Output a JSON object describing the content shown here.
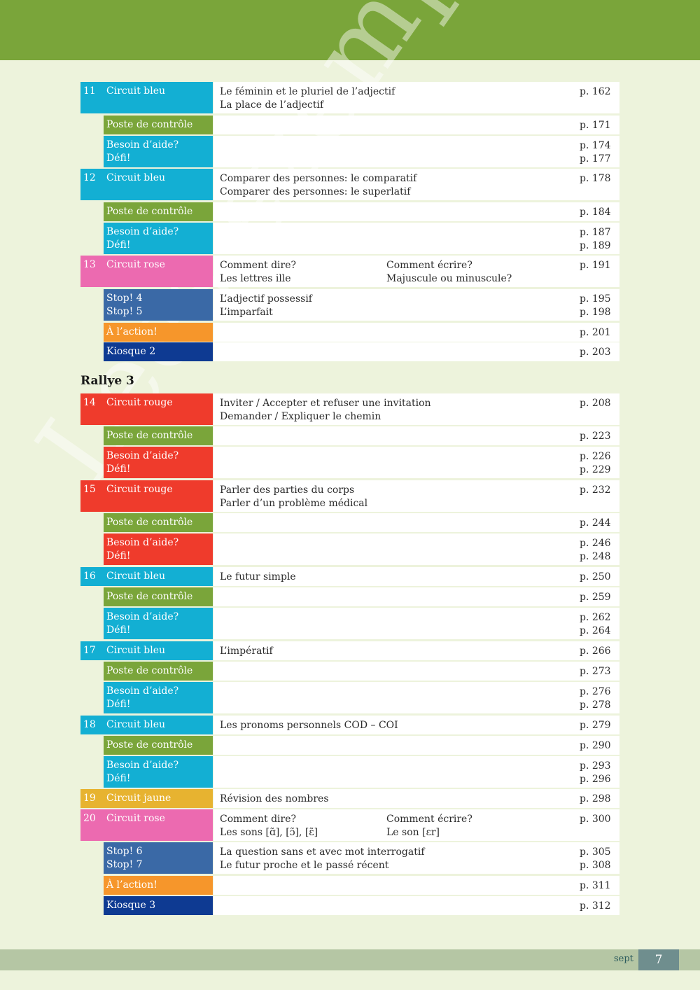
{
  "watermark": "Lees exemplaar",
  "rallye_title": "Rallye 3",
  "footer": {
    "word": "sept",
    "page": "7"
  },
  "colors": {
    "bleu": "#13afd3",
    "vert": "#7aa53a",
    "rose": "#ec6ab0",
    "rouge": "#ef3b2c",
    "stop": "#3a69a6",
    "action": "#f6962b",
    "kiosque": "#0e3a92",
    "jaune": "#e7b330",
    "num_bleu": "#13afd3",
    "num_rose": "#ec6ab0",
    "num_rouge": "#ef3b2c",
    "num_jaune": "#e7b330"
  },
  "rows": [
    {
      "num": "11",
      "label": "Circuit bleu",
      "color": "bleu",
      "c1": "Le féminin et le pluriel de l’adjectif\nLa place de l’adjectif",
      "c2": "",
      "page": "p. 162"
    },
    {
      "num": "",
      "label": "Poste de contrôle",
      "color": "vert",
      "c1": "",
      "c2": "",
      "page": "p. 171"
    },
    {
      "num": "",
      "label": "Besoin d’aide?\nDéfi!",
      "color": "bleu",
      "c1": "",
      "c2": "",
      "page": "p. 174\np. 177"
    },
    {
      "num": "12",
      "label": "Circuit bleu",
      "color": "bleu",
      "c1": "Comparer des personnes: le comparatif\nComparer des personnes: le superlatif",
      "c2": "",
      "page": "p. 178"
    },
    {
      "num": "",
      "label": "Poste de contrôle",
      "color": "vert",
      "c1": "",
      "c2": "",
      "page": "p. 184"
    },
    {
      "num": "",
      "label": "Besoin d’aide?\nDéfi!",
      "color": "bleu",
      "c1": "",
      "c2": "",
      "page": "p. 187\np. 189"
    },
    {
      "num": "13",
      "label": "Circuit rose",
      "color": "rose",
      "c1": "Comment dire?\nLes lettres ille",
      "c2": "Comment écrire?\nMajuscule ou minuscule?",
      "page": "p. 191"
    },
    {
      "num": "",
      "label": "Stop! 4\nStop! 5",
      "color": "stop",
      "c1": "L’adjectif possessif\nL’imparfait",
      "c2": "",
      "page": "p. 195\np. 198"
    },
    {
      "num": "",
      "label": "À l’action!",
      "color": "action",
      "c1": "",
      "c2": "",
      "page": "p. 201"
    },
    {
      "num": "",
      "label": "Kiosque 2",
      "color": "kiosque",
      "c1": "",
      "c2": "",
      "page": "p. 203"
    },
    {
      "num": "14",
      "label": "Circuit rouge",
      "color": "rouge",
      "c1": "Inviter / Accepter et refuser une invitation\nDemander / Expliquer le chemin",
      "c2": "",
      "page": "p. 208"
    },
    {
      "num": "",
      "label": "Poste de contrôle",
      "color": "vert",
      "c1": "",
      "c2": "",
      "page": "p. 223"
    },
    {
      "num": "",
      "label": "Besoin d’aide?\nDéfi!",
      "color": "rouge",
      "c1": "",
      "c2": "",
      "page": "p. 226\np. 229"
    },
    {
      "num": "15",
      "label": "Circuit rouge",
      "color": "rouge",
      "c1": "Parler des parties du corps\nParler d’un problème médical",
      "c2": "",
      "page": "p. 232"
    },
    {
      "num": "",
      "label": "Poste de contrôle",
      "color": "vert",
      "c1": "",
      "c2": "",
      "page": "p. 244"
    },
    {
      "num": "",
      "label": "Besoin d’aide?\nDéfi!",
      "color": "rouge",
      "c1": "",
      "c2": "",
      "page": "p. 246\np. 248"
    },
    {
      "num": "16",
      "label": "Circuit bleu",
      "color": "bleu",
      "c1": "Le futur simple",
      "c2": "",
      "page": "p. 250"
    },
    {
      "num": "",
      "label": "Poste de contrôle",
      "color": "vert",
      "c1": "",
      "c2": "",
      "page": "p. 259"
    },
    {
      "num": "",
      "label": "Besoin d’aide?\nDéfi!",
      "color": "bleu",
      "c1": "",
      "c2": "",
      "page": "p. 262\np. 264"
    },
    {
      "num": "17",
      "label": "Circuit bleu",
      "color": "bleu",
      "c1": "L’impératif",
      "c2": "",
      "page": "p. 266"
    },
    {
      "num": "",
      "label": "Poste de contrôle",
      "color": "vert",
      "c1": "",
      "c2": "",
      "page": "p. 273"
    },
    {
      "num": "",
      "label": "Besoin d’aide?\nDéfi!",
      "color": "bleu",
      "c1": "",
      "c2": "",
      "page": "p. 276\np. 278"
    },
    {
      "num": "18",
      "label": "Circuit bleu",
      "color": "bleu",
      "c1": "Les pronoms personnels COD – COI",
      "c2": "",
      "page": "p. 279"
    },
    {
      "num": "",
      "label": "Poste de contrôle",
      "color": "vert",
      "c1": "",
      "c2": "",
      "page": "p. 290"
    },
    {
      "num": "",
      "label": "Besoin d’aide?\nDéfi!",
      "color": "bleu",
      "c1": "",
      "c2": "",
      "page": "p. 293\np. 296"
    },
    {
      "num": "19",
      "label": "Circuit jaune",
      "color": "jaune",
      "c1": "Révision des nombres",
      "c2": "",
      "page": "p. 298"
    },
    {
      "num": "20",
      "label": "Circuit rose",
      "color": "rose",
      "c1": "Comment dire?\nLes sons [ɑ̃], [ɔ̃], [ɛ̃]",
      "c2": "Comment écrire?\nLe son [ɛr]",
      "page": "p. 300"
    },
    {
      "num": "",
      "label": "Stop! 6\nStop! 7",
      "color": "stop",
      "c1": "La question sans et avec mot interrogatif\nLe futur proche et le passé récent",
      "c2": "",
      "page": "p. 305\np. 308"
    },
    {
      "num": "",
      "label": "À l’action!",
      "color": "action",
      "c1": "",
      "c2": "",
      "page": "p. 311"
    },
    {
      "num": "",
      "label": "Kiosque 3",
      "color": "kiosque",
      "c1": "",
      "c2": "",
      "page": "p. 312"
    }
  ]
}
